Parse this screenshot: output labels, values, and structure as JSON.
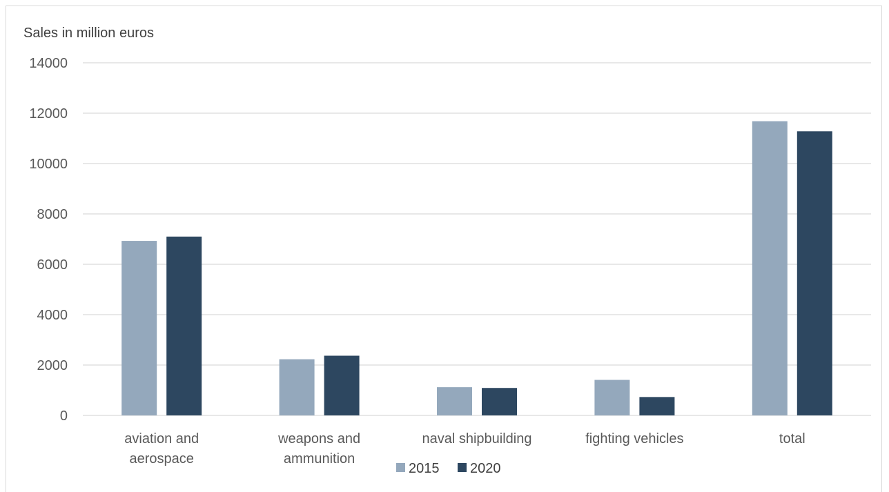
{
  "chart_data": {
    "type": "bar",
    "ylabel": "Sales in million euros",
    "ylim": [
      0,
      14000
    ],
    "yticks": [
      0,
      2000,
      4000,
      6000,
      8000,
      10000,
      12000,
      14000
    ],
    "grid": true,
    "legend_position": "bottom",
    "categories": [
      [
        "aviation and",
        "aerospace"
      ],
      [
        "weapons and",
        "ammunition"
      ],
      [
        "naval shipbuilding"
      ],
      [
        "fighting vehicles"
      ],
      [
        "total"
      ]
    ],
    "series": [
      {
        "name": "2015",
        "color": "#94a8bc",
        "values": [
          6930,
          2230,
          1120,
          1410,
          11680
        ]
      },
      {
        "name": "2020",
        "color": "#2d4760",
        "values": [
          7100,
          2370,
          1090,
          730,
          11280
        ]
      }
    ]
  }
}
